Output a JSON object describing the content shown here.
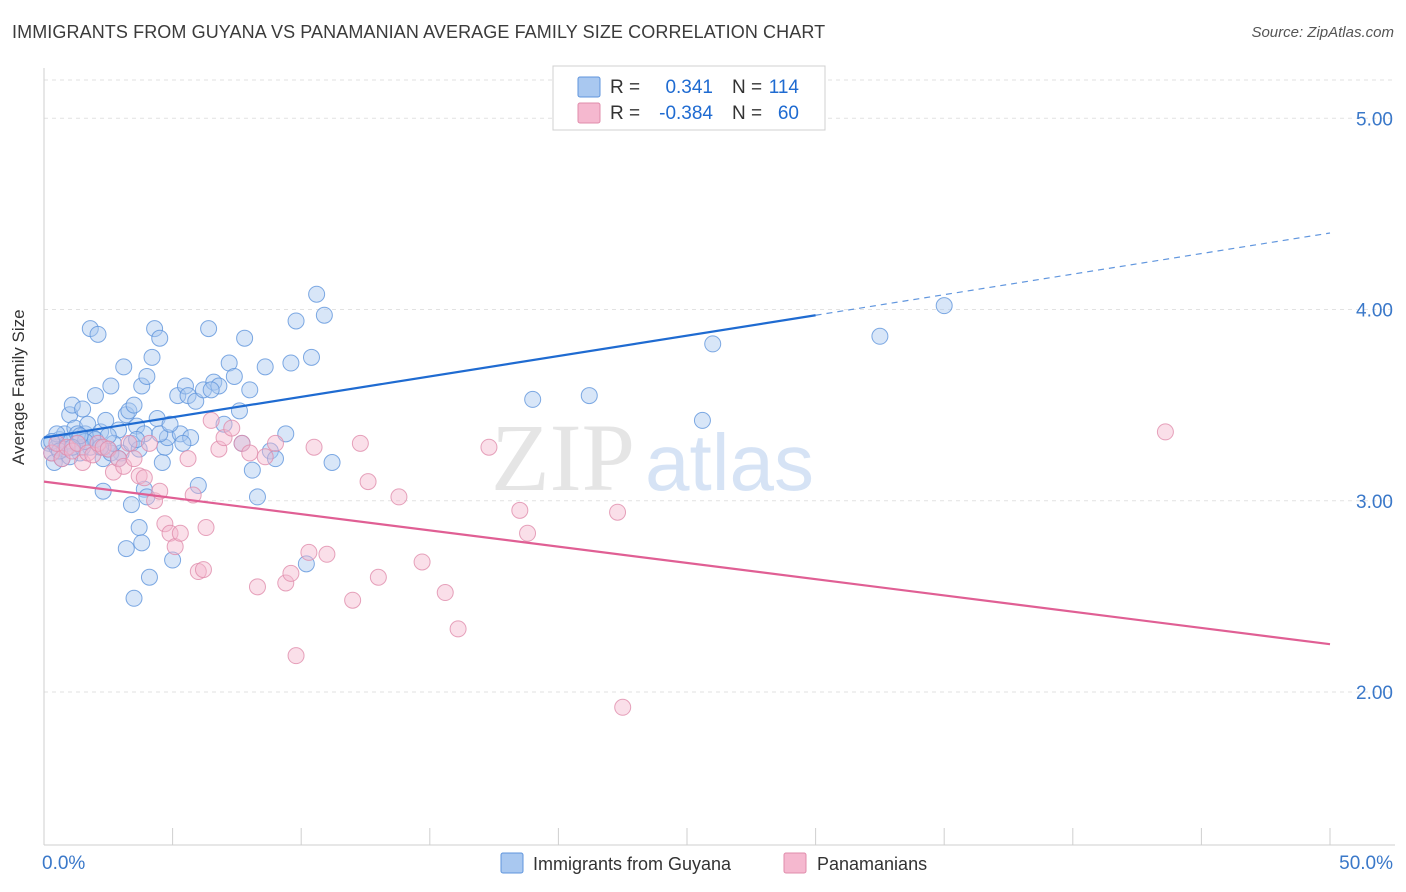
{
  "title": "IMMIGRANTS FROM GUYANA VS PANAMANIAN AVERAGE FAMILY SIZE CORRELATION CHART",
  "source": "Source: ZipAtlas.com",
  "watermark": {
    "zip": "ZIP",
    "atlas": "atlas"
  },
  "colors": {
    "blue": "#1f6bd1",
    "blue_fill": "#a9c8f0",
    "pink": "#e05f94",
    "pink_fill": "#f5b8cf",
    "axis_text": "#3a78c9"
  },
  "legend": [
    {
      "r_label": "R =",
      "r_value": "0.341",
      "n_label": "N =",
      "n_value": "114"
    },
    {
      "r_label": "R =",
      "r_value": "-0.384",
      "n_label": "N =",
      "n_value": "60"
    }
  ],
  "chart_data": {
    "type": "scatter",
    "xlabel": "",
    "ylabel": "Average Family Size",
    "xlim": [
      0,
      50
    ],
    "ylim": [
      1.2,
      5.2
    ],
    "x_tick_labels": [
      "0.0%",
      "50.0%"
    ],
    "y_ticks": [
      2.0,
      3.0,
      4.0,
      5.0
    ],
    "y_tick_labels": [
      "2.00",
      "3.00",
      "4.00",
      "5.00"
    ],
    "grid": true,
    "legend_position": "top-center",
    "series": [
      {
        "name": "Immigrants from Guyana",
        "color": "blue",
        "trend": {
          "x0": 0,
          "y0": 3.33,
          "x1": 30,
          "y1": 3.97,
          "dash_to_x": 50,
          "dash_to_y": 4.4
        },
        "points": [
          [
            0.2,
            3.3
          ],
          [
            0.3,
            3.25
          ],
          [
            0.4,
            3.2
          ],
          [
            0.5,
            3.28
          ],
          [
            0.6,
            3.32
          ],
          [
            0.7,
            3.22
          ],
          [
            0.8,
            3.35
          ],
          [
            0.9,
            3.3
          ],
          [
            1.0,
            3.45
          ],
          [
            1.1,
            3.5
          ],
          [
            1.2,
            3.38
          ],
          [
            1.3,
            3.3
          ],
          [
            1.4,
            3.25
          ],
          [
            1.5,
            3.48
          ],
          [
            1.6,
            3.35
          ],
          [
            1.7,
            3.4
          ],
          [
            1.8,
            3.28
          ],
          [
            1.9,
            3.33
          ],
          [
            2.0,
            3.55
          ],
          [
            2.1,
            3.3
          ],
          [
            2.2,
            3.36
          ],
          [
            2.3,
            3.22
          ],
          [
            2.4,
            3.42
          ],
          [
            2.5,
            3.27
          ],
          [
            1.8,
            3.9
          ],
          [
            2.1,
            3.87
          ],
          [
            2.3,
            3.05
          ],
          [
            2.6,
            3.6
          ],
          [
            2.9,
            3.37
          ],
          [
            3.0,
            3.25
          ],
          [
            3.1,
            3.7
          ],
          [
            3.2,
            3.45
          ],
          [
            3.3,
            3.47
          ],
          [
            3.4,
            3.3
          ],
          [
            3.5,
            3.5
          ],
          [
            3.6,
            3.39
          ],
          [
            3.7,
            3.27
          ],
          [
            3.8,
            3.6
          ],
          [
            3.9,
            3.35
          ],
          [
            4.0,
            3.65
          ],
          [
            3.2,
            2.75
          ],
          [
            3.7,
            2.86
          ],
          [
            3.8,
            2.78
          ],
          [
            3.9,
            3.06
          ],
          [
            4.1,
            2.6
          ],
          [
            4.2,
            3.75
          ],
          [
            4.3,
            3.9
          ],
          [
            4.4,
            3.43
          ],
          [
            4.5,
            3.85
          ],
          [
            4.6,
            3.2
          ],
          [
            4.7,
            3.28
          ],
          [
            4.8,
            3.33
          ],
          [
            5.0,
            2.69
          ],
          [
            5.2,
            3.55
          ],
          [
            5.3,
            3.35
          ],
          [
            5.5,
            3.6
          ],
          [
            5.6,
            3.55
          ],
          [
            5.7,
            3.33
          ],
          [
            5.9,
            3.52
          ],
          [
            6.0,
            3.08
          ],
          [
            6.2,
            3.58
          ],
          [
            6.4,
            3.9
          ],
          [
            6.6,
            3.62
          ],
          [
            6.8,
            3.6
          ],
          [
            7.0,
            3.4
          ],
          [
            7.2,
            3.72
          ],
          [
            7.4,
            3.65
          ],
          [
            7.6,
            3.47
          ],
          [
            7.8,
            3.85
          ],
          [
            8.0,
            3.58
          ],
          [
            8.1,
            3.16
          ],
          [
            8.3,
            3.02
          ],
          [
            8.6,
            3.7
          ],
          [
            8.8,
            3.26
          ],
          [
            9.0,
            3.22
          ],
          [
            9.4,
            3.35
          ],
          [
            9.6,
            3.72
          ],
          [
            9.8,
            3.94
          ],
          [
            10.2,
            2.67
          ],
          [
            10.4,
            3.75
          ],
          [
            10.6,
            4.08
          ],
          [
            10.9,
            3.97
          ],
          [
            11.2,
            3.2
          ],
          [
            1.3,
            3.35
          ],
          [
            1.5,
            3.28
          ],
          [
            2.6,
            3.25
          ],
          [
            2.0,
            3.32
          ],
          [
            2.7,
            3.3
          ],
          [
            0.5,
            3.35
          ],
          [
            0.8,
            3.27
          ],
          [
            3.4,
            2.98
          ],
          [
            4.0,
            3.02
          ],
          [
            3.5,
            2.49
          ],
          [
            2.2,
            3.28
          ],
          [
            1.0,
            3.23
          ],
          [
            1.6,
            3.31
          ],
          [
            2.9,
            3.22
          ],
          [
            4.5,
            3.35
          ],
          [
            5.4,
            3.3
          ],
          [
            6.5,
            3.58
          ],
          [
            7.7,
            3.3
          ],
          [
            0.3,
            3.31
          ],
          [
            0.6,
            3.26
          ],
          [
            1.4,
            3.34
          ],
          [
            19.0,
            3.53
          ],
          [
            21.2,
            3.55
          ],
          [
            25.6,
            3.42
          ],
          [
            26.0,
            3.82
          ],
          [
            32.5,
            3.86
          ],
          [
            35.0,
            4.02
          ],
          [
            1.1,
            3.28
          ],
          [
            2.5,
            3.34
          ],
          [
            3.6,
            3.32
          ],
          [
            4.9,
            3.4
          ]
        ]
      },
      {
        "name": "Panamanians",
        "color": "pink",
        "trend": {
          "x0": 0,
          "y0": 3.1,
          "x1": 50,
          "y1": 2.25
        },
        "points": [
          [
            0.3,
            3.25
          ],
          [
            0.5,
            3.3
          ],
          [
            0.7,
            3.22
          ],
          [
            0.9,
            3.28
          ],
          [
            1.1,
            3.26
          ],
          [
            1.3,
            3.3
          ],
          [
            1.5,
            3.2
          ],
          [
            1.7,
            3.25
          ],
          [
            1.9,
            3.24
          ],
          [
            2.1,
            3.3
          ],
          [
            2.3,
            3.28
          ],
          [
            2.5,
            3.27
          ],
          [
            2.7,
            3.15
          ],
          [
            2.9,
            3.22
          ],
          [
            3.1,
            3.18
          ],
          [
            3.3,
            3.3
          ],
          [
            3.5,
            3.22
          ],
          [
            3.7,
            3.13
          ],
          [
            3.9,
            3.12
          ],
          [
            4.1,
            3.3
          ],
          [
            4.3,
            3.0
          ],
          [
            4.5,
            3.05
          ],
          [
            4.7,
            2.88
          ],
          [
            4.9,
            2.83
          ],
          [
            5.1,
            2.76
          ],
          [
            5.3,
            2.83
          ],
          [
            5.6,
            3.22
          ],
          [
            5.8,
            3.03
          ],
          [
            6.0,
            2.63
          ],
          [
            6.2,
            2.64
          ],
          [
            6.3,
            2.86
          ],
          [
            6.5,
            3.42
          ],
          [
            6.8,
            3.27
          ],
          [
            7.0,
            3.33
          ],
          [
            7.3,
            3.38
          ],
          [
            7.7,
            3.3
          ],
          [
            8.0,
            3.25
          ],
          [
            8.3,
            2.55
          ],
          [
            8.6,
            3.23
          ],
          [
            9.0,
            3.3
          ],
          [
            9.4,
            2.57
          ],
          [
            9.6,
            2.62
          ],
          [
            9.8,
            2.19
          ],
          [
            10.3,
            2.73
          ],
          [
            10.5,
            3.28
          ],
          [
            11.0,
            2.72
          ],
          [
            12.0,
            2.48
          ],
          [
            12.3,
            3.3
          ],
          [
            12.6,
            3.1
          ],
          [
            13.0,
            2.6
          ],
          [
            13.8,
            3.02
          ],
          [
            14.7,
            2.68
          ],
          [
            15.6,
            2.52
          ],
          [
            16.1,
            2.33
          ],
          [
            17.3,
            3.28
          ],
          [
            18.5,
            2.95
          ],
          [
            18.8,
            2.83
          ],
          [
            22.3,
            2.94
          ],
          [
            22.5,
            1.92
          ],
          [
            43.6,
            3.36
          ]
        ]
      }
    ]
  }
}
